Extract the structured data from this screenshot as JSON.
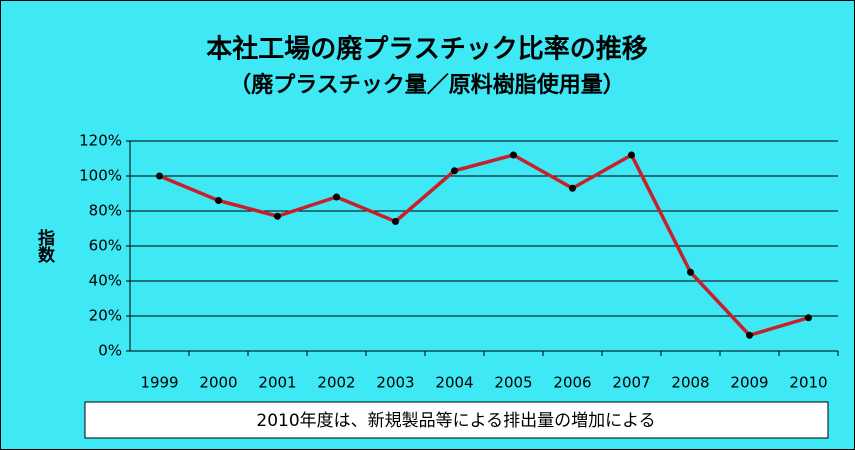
{
  "chart_data": {
    "type": "line",
    "title": "本社工場の廃プラスチック比率の推移",
    "subtitle": "（廃プラスチック量／原料樹脂使用量）",
    "y_label": "指数",
    "annotation": "2010年度は、新規製品等による排出量の増加による",
    "categories": [
      "1999",
      "2000",
      "2001",
      "2002",
      "2003",
      "2004",
      "2005",
      "2006",
      "2007",
      "2008",
      "2009",
      "2010"
    ],
    "values": [
      100,
      86,
      77,
      88,
      74,
      103,
      112,
      93,
      112,
      45,
      9,
      19
    ],
    "color": "#c8202a",
    "marker_color": "#000000",
    "ylim": [
      0,
      120
    ],
    "yticks": [
      {
        "value": 0,
        "label": "0%"
      },
      {
        "value": 20,
        "label": "20%"
      },
      {
        "value": 40,
        "label": "40%"
      },
      {
        "value": 60,
        "label": "60%"
      },
      {
        "value": 80,
        "label": "80%"
      },
      {
        "value": 100,
        "label": "100%"
      },
      {
        "value": 120,
        "label": "120%"
      }
    ],
    "grid": true
  }
}
